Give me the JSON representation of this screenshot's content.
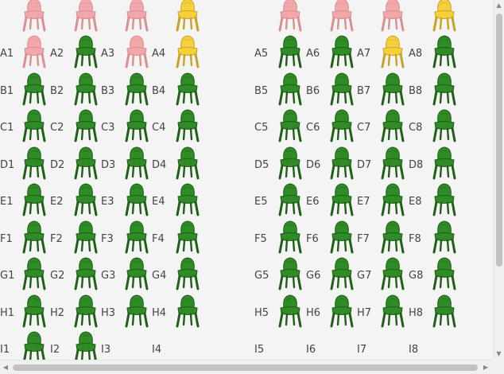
{
  "colors": {
    "available": "#2e8b25",
    "available_dark": "#1f5f17",
    "reserved": "#f2a7aa",
    "reserved_dark": "#d98f93",
    "selected": "#f6cf3d",
    "selected_dark": "#c9a225",
    "label": "#444444"
  },
  "icons": {
    "chair": "chair-icon",
    "scroll_up": "chevron-up-icon",
    "scroll_down": "chevron-down-icon",
    "scroll_left": "chevron-left-icon",
    "scroll_right": "chevron-right-icon"
  },
  "partial_row": {
    "statuses": [
      "reserved",
      "reserved",
      "reserved",
      "selected",
      "reserved",
      "reserved",
      "reserved",
      "selected"
    ]
  },
  "rows": [
    {
      "row": "A",
      "seats": [
        {
          "label": "A1",
          "status": "reserved"
        },
        {
          "label": "A2",
          "status": "available"
        },
        {
          "label": "A3",
          "status": "reserved"
        },
        {
          "label": "A4",
          "status": "selected"
        },
        {
          "label": "A5",
          "status": "available"
        },
        {
          "label": "A6",
          "status": "available"
        },
        {
          "label": "A7",
          "status": "selected"
        },
        {
          "label": "A8",
          "status": "available"
        }
      ]
    },
    {
      "row": "B",
      "seats": [
        {
          "label": "B1",
          "status": "available"
        },
        {
          "label": "B2",
          "status": "available"
        },
        {
          "label": "B3",
          "status": "available"
        },
        {
          "label": "B4",
          "status": "available"
        },
        {
          "label": "B5",
          "status": "available"
        },
        {
          "label": "B6",
          "status": "available"
        },
        {
          "label": "B7",
          "status": "available"
        },
        {
          "label": "B8",
          "status": "available"
        }
      ]
    },
    {
      "row": "C",
      "seats": [
        {
          "label": "C1",
          "status": "available"
        },
        {
          "label": "C2",
          "status": "available"
        },
        {
          "label": "C3",
          "status": "available"
        },
        {
          "label": "C4",
          "status": "available"
        },
        {
          "label": "C5",
          "status": "available"
        },
        {
          "label": "C6",
          "status": "available"
        },
        {
          "label": "C7",
          "status": "available"
        },
        {
          "label": "C8",
          "status": "available"
        }
      ]
    },
    {
      "row": "D",
      "seats": [
        {
          "label": "D1",
          "status": "available"
        },
        {
          "label": "D2",
          "status": "available"
        },
        {
          "label": "D3",
          "status": "available"
        },
        {
          "label": "D4",
          "status": "available"
        },
        {
          "label": "D5",
          "status": "available"
        },
        {
          "label": "D6",
          "status": "available"
        },
        {
          "label": "D7",
          "status": "available"
        },
        {
          "label": "D8",
          "status": "available"
        }
      ]
    },
    {
      "row": "E",
      "seats": [
        {
          "label": "E1",
          "status": "available"
        },
        {
          "label": "E2",
          "status": "available"
        },
        {
          "label": "E3",
          "status": "available"
        },
        {
          "label": "E4",
          "status": "available"
        },
        {
          "label": "E5",
          "status": "available"
        },
        {
          "label": "E6",
          "status": "available"
        },
        {
          "label": "E7",
          "status": "available"
        },
        {
          "label": "E8",
          "status": "available"
        }
      ]
    },
    {
      "row": "F",
      "seats": [
        {
          "label": "F1",
          "status": "available"
        },
        {
          "label": "F2",
          "status": "available"
        },
        {
          "label": "F3",
          "status": "available"
        },
        {
          "label": "F4",
          "status": "available"
        },
        {
          "label": "F5",
          "status": "available"
        },
        {
          "label": "F6",
          "status": "available"
        },
        {
          "label": "F7",
          "status": "available"
        },
        {
          "label": "F8",
          "status": "available"
        }
      ]
    },
    {
      "row": "G",
      "seats": [
        {
          "label": "G1",
          "status": "available"
        },
        {
          "label": "G2",
          "status": "available"
        },
        {
          "label": "G3",
          "status": "available"
        },
        {
          "label": "G4",
          "status": "available"
        },
        {
          "label": "G5",
          "status": "available"
        },
        {
          "label": "G6",
          "status": "available"
        },
        {
          "label": "G7",
          "status": "available"
        },
        {
          "label": "G8",
          "status": "available"
        }
      ]
    },
    {
      "row": "H",
      "seats": [
        {
          "label": "H1",
          "status": "available"
        },
        {
          "label": "H2",
          "status": "available"
        },
        {
          "label": "H3",
          "status": "available"
        },
        {
          "label": "H4",
          "status": "available"
        },
        {
          "label": "H5",
          "status": "available"
        },
        {
          "label": "H6",
          "status": "available"
        },
        {
          "label": "H7",
          "status": "available"
        },
        {
          "label": "H8",
          "status": "available"
        }
      ]
    },
    {
      "row": "I",
      "seats": [
        {
          "label": "I1",
          "status": "available"
        },
        {
          "label": "I2",
          "status": "available"
        },
        {
          "label": "I3",
          "status": "none"
        },
        {
          "label": "I4",
          "status": "none"
        },
        {
          "label": "I5",
          "status": "none"
        },
        {
          "label": "I6",
          "status": "none"
        },
        {
          "label": "I7",
          "status": "none"
        },
        {
          "label": "I8",
          "status": "none"
        }
      ]
    }
  ]
}
